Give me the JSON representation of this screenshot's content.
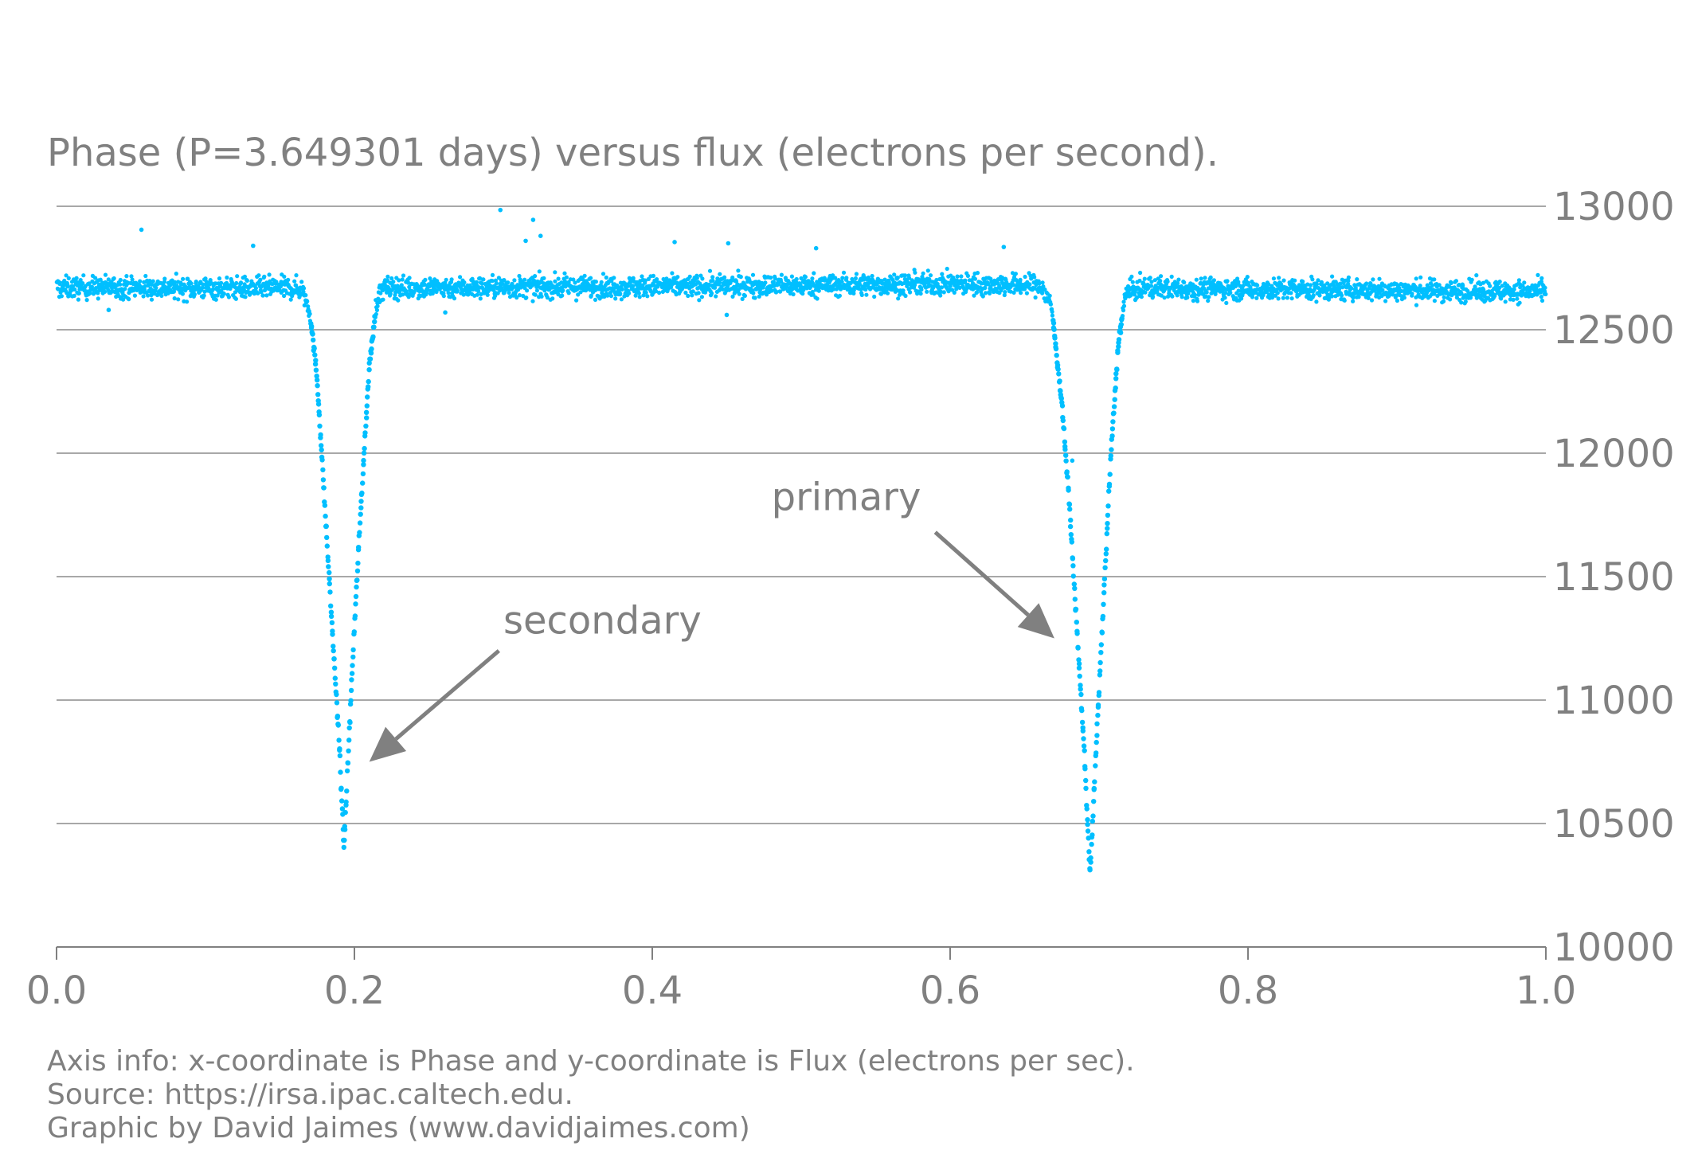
{
  "chart_data": {
    "type": "scatter",
    "title": "Phase (P=3.649301 days) versus flux (electrons per second).",
    "xlabel": "",
    "ylabel": "",
    "xlim": [
      0.0,
      1.0
    ],
    "ylim": [
      10000,
      13000
    ],
    "x_ticks": [
      "0.0",
      "0.2",
      "0.4",
      "0.6",
      "0.8",
      "1.0"
    ],
    "y_ticks": [
      "10000",
      "10500",
      "11000",
      "11500",
      "12000",
      "12500",
      "13000"
    ],
    "y_axis_side": "right",
    "grid": "horizontal",
    "point_color": "#00bfff",
    "baseline_flux": 12670,
    "series": [
      {
        "points": [
          [
            0.0,
            12670
          ],
          [
            0.05,
            12672
          ],
          [
            0.1,
            12668
          ],
          [
            0.15,
            12670
          ],
          [
            0.165,
            12665
          ],
          [
            0.17,
            12580
          ],
          [
            0.175,
            12300
          ],
          [
            0.18,
            11800
          ],
          [
            0.185,
            11300
          ],
          [
            0.19,
            10800
          ],
          [
            0.193,
            10400
          ],
          [
            0.196,
            10800
          ],
          [
            0.2,
            11300
          ],
          [
            0.205,
            11850
          ],
          [
            0.21,
            12350
          ],
          [
            0.215,
            12620
          ],
          [
            0.22,
            12670
          ],
          [
            0.3,
            12672
          ],
          [
            0.4,
            12675
          ],
          [
            0.5,
            12680
          ],
          [
            0.6,
            12685
          ],
          [
            0.66,
            12680
          ],
          [
            0.668,
            12600
          ],
          [
            0.675,
            12200
          ],
          [
            0.68,
            11800
          ],
          [
            0.685,
            11300
          ],
          [
            0.69,
            10800
          ],
          [
            0.694,
            10290
          ],
          [
            0.698,
            10800
          ],
          [
            0.703,
            11400
          ],
          [
            0.708,
            12000
          ],
          [
            0.713,
            12450
          ],
          [
            0.718,
            12650
          ],
          [
            0.73,
            12670
          ],
          [
            0.8,
            12665
          ],
          [
            0.9,
            12660
          ],
          [
            1.0,
            12655
          ]
        ]
      }
    ],
    "outliers": [
      [
        0.057,
        12905
      ],
      [
        0.132,
        12840
      ],
      [
        0.298,
        12985
      ],
      [
        0.315,
        12860
      ],
      [
        0.32,
        12945
      ],
      [
        0.325,
        12880
      ],
      [
        0.415,
        12855
      ],
      [
        0.451,
        12850
      ],
      [
        0.51,
        12830
      ],
      [
        0.636,
        12835
      ],
      [
        0.682,
        11970
      ],
      [
        0.45,
        12560
      ],
      [
        0.261,
        12570
      ],
      [
        0.035,
        12580
      ]
    ],
    "annotations": [
      {
        "text": "primary",
        "x": 0.48,
        "y": 11770,
        "arrow_from": [
          0.59,
          11680
        ],
        "arrow_to": [
          0.67,
          11250
        ]
      },
      {
        "text": "secondary",
        "x": 0.3,
        "y": 11270,
        "arrow_from": [
          0.297,
          11200
        ],
        "arrow_to": [
          0.21,
          10750
        ]
      }
    ]
  },
  "footer": {
    "line1": "Axis info: x-coordinate is Phase and y-coordinate is Flux (electrons per sec).",
    "line2": "Source: https://irsa.ipac.caltech.edu.",
    "line3": "Graphic by David Jaimes (www.davidjaimes.com)"
  }
}
